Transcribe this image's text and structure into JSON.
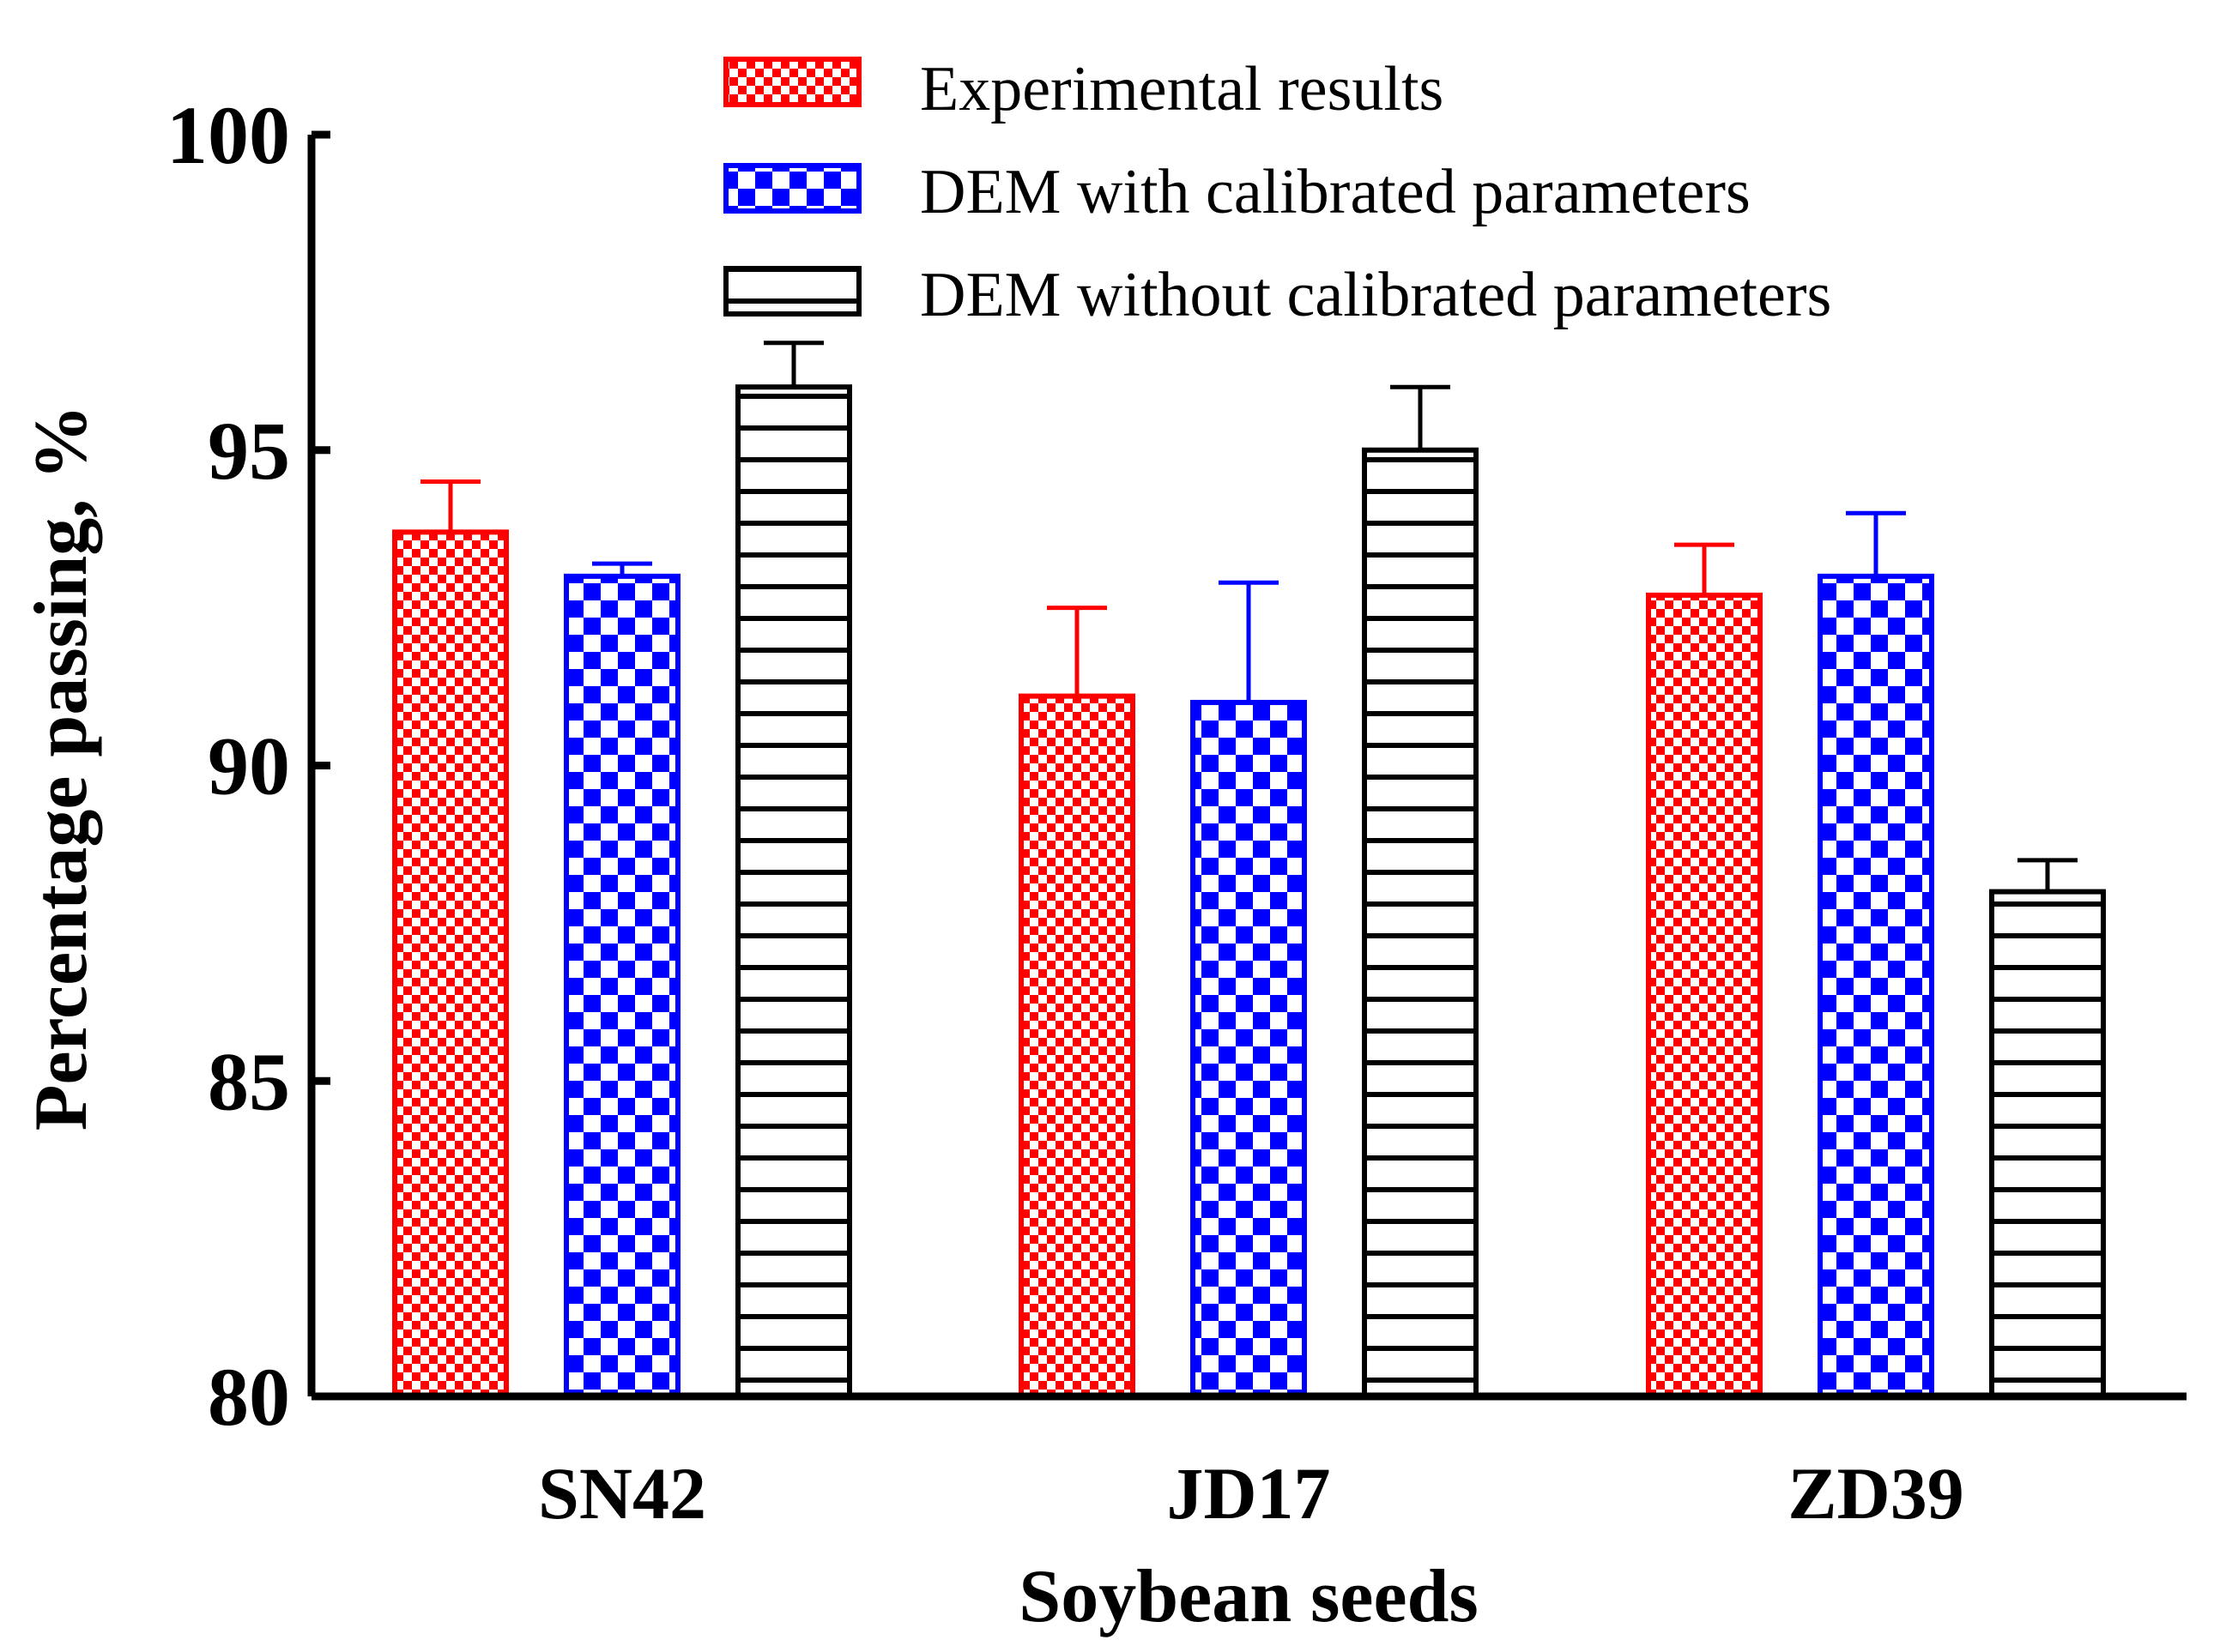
{
  "chart_data": {
    "type": "bar",
    "xlabel": "Soybean seeds",
    "ylabel": "Percentage passing, %",
    "ylim": [
      80,
      100
    ],
    "yticks": [
      "80",
      "85",
      "90",
      "95",
      "100"
    ],
    "ytick_values": [
      80,
      85,
      90,
      95,
      100
    ],
    "categories": [
      "SN42",
      "JD17",
      "ZD39"
    ],
    "legend_position": "top-center",
    "grid": false,
    "series": [
      {
        "name": "Experimental results",
        "color": "#ff0000",
        "pattern": "fine-checker",
        "values": [
          93.7,
          91.1,
          92.7
        ],
        "errors": [
          0.8,
          1.4,
          0.8
        ]
      },
      {
        "name": "DEM with calibrated parameters",
        "color": "#0000ff",
        "pattern": "coarse-checker",
        "values": [
          93.0,
          91.0,
          93.0
        ],
        "errors": [
          0.2,
          1.9,
          1.0
        ]
      },
      {
        "name": "DEM without calibrated parameters",
        "color": "#000000",
        "pattern": "horizontal-lines",
        "values": [
          96.0,
          95.0,
          88.0
        ],
        "errors": [
          0.7,
          1.0,
          0.5
        ]
      }
    ]
  }
}
